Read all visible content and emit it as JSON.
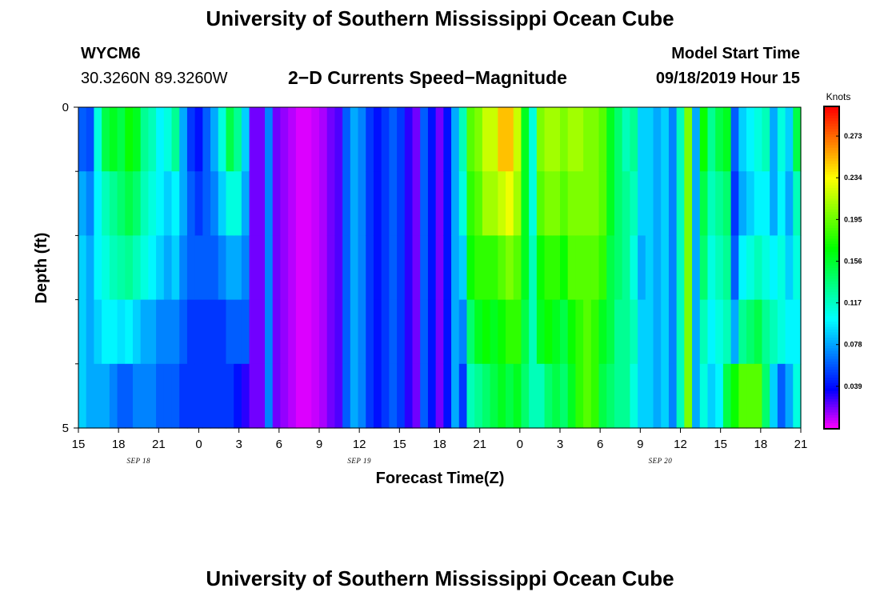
{
  "header": {
    "title_top": "University of Southern Mississippi Ocean Cube",
    "title_bottom": "University of Southern Mississippi Ocean Cube",
    "station_id": "WYCM6",
    "coords": "30.3260N 89.3260W",
    "chart_subtitle": "2−D Currents Speed−Magnitude",
    "model_start_label": "Model Start Time",
    "model_start_value": "09/18/2019 Hour 15"
  },
  "chart_data": {
    "type": "heatmap",
    "title": "2-D Currents Speed-Magnitude",
    "xlabel": "Forecast Time(Z)",
    "ylabel": "Depth (ft)",
    "xlim": [
      0,
      54
    ],
    "ylim": [
      0,
      5
    ],
    "x_ticks": [
      0,
      3,
      6,
      9,
      12,
      15,
      18,
      21,
      24,
      27,
      30,
      33,
      36,
      39,
      42,
      45,
      48,
      51,
      54
    ],
    "x_tick_labels": [
      "15",
      "18",
      "21",
      "0",
      "3",
      "6",
      "9",
      "12",
      "15",
      "18",
      "21",
      "0",
      "3",
      "6",
      "9",
      "12",
      "15",
      "18",
      "21"
    ],
    "y_tick_labels": [
      "0",
      "5"
    ],
    "y_minor_ticks": [
      1,
      2,
      3,
      4
    ],
    "date_labels": [
      {
        "label": "SEP 18",
        "x": 4.5
      },
      {
        "label": "SEP 19",
        "x": 21
      },
      {
        "label": "SEP 20",
        "x": 43.5
      }
    ],
    "colorbar": {
      "unit": "Knots",
      "min": 0.0,
      "max": 0.3,
      "ticks": [
        0.039,
        0.078,
        0.117,
        0.156,
        0.195,
        0.234,
        0.273
      ],
      "tick_labels": [
        "0.039",
        "0.078",
        "0.117",
        "0.156",
        "0.195",
        "0.234",
        "0.273"
      ]
    },
    "columns_per_hour": 2,
    "depth_layers": 5,
    "speed_knots": [
      [
        0.06,
        0.08,
        0.09,
        0.09,
        0.09
      ],
      [
        0.055,
        0.07,
        0.08,
        0.08,
        0.08
      ],
      [
        0.11,
        0.1,
        0.1,
        0.09,
        0.08
      ],
      [
        0.15,
        0.12,
        0.11,
        0.1,
        0.08
      ],
      [
        0.16,
        0.13,
        0.12,
        0.1,
        0.07
      ],
      [
        0.15,
        0.14,
        0.125,
        0.095,
        0.06
      ],
      [
        0.17,
        0.15,
        0.13,
        0.1,
        0.06
      ],
      [
        0.16,
        0.14,
        0.12,
        0.09,
        0.07
      ],
      [
        0.13,
        0.12,
        0.11,
        0.08,
        0.07
      ],
      [
        0.12,
        0.11,
        0.1,
        0.08,
        0.07
      ],
      [
        0.1,
        0.1,
        0.09,
        0.07,
        0.06
      ],
      [
        0.11,
        0.09,
        0.08,
        0.07,
        0.06
      ],
      [
        0.13,
        0.1,
        0.09,
        0.07,
        0.06
      ],
      [
        0.08,
        0.08,
        0.07,
        0.06,
        0.05
      ],
      [
        0.05,
        0.06,
        0.06,
        0.05,
        0.05
      ],
      [
        0.04,
        0.05,
        0.06,
        0.05,
        0.05
      ],
      [
        0.06,
        0.06,
        0.06,
        0.05,
        0.05
      ],
      [
        0.08,
        0.07,
        0.06,
        0.05,
        0.05
      ],
      [
        0.11,
        0.09,
        0.07,
        0.05,
        0.05
      ],
      [
        0.15,
        0.11,
        0.08,
        0.06,
        0.05
      ],
      [
        0.13,
        0.11,
        0.08,
        0.06,
        0.04
      ],
      [
        0.09,
        0.08,
        0.07,
        0.06,
        0.03
      ],
      [
        0.02,
        0.02,
        0.02,
        0.02,
        0.02
      ],
      [
        0.02,
        0.02,
        0.02,
        0.02,
        0.02
      ],
      [
        0.07,
        0.07,
        0.07,
        0.07,
        0.07
      ],
      [
        0.02,
        0.02,
        0.02,
        0.02,
        0.02
      ],
      [
        0.015,
        0.015,
        0.015,
        0.015,
        0.015
      ],
      [
        0.01,
        0.01,
        0.01,
        0.01,
        0.01
      ],
      [
        0.005,
        0.005,
        0.005,
        0.005,
        0.005
      ],
      [
        0.005,
        0.005,
        0.005,
        0.005,
        0.005
      ],
      [
        0.008,
        0.008,
        0.008,
        0.008,
        0.008
      ],
      [
        0.012,
        0.012,
        0.012,
        0.012,
        0.012
      ],
      [
        0.02,
        0.02,
        0.02,
        0.02,
        0.02
      ],
      [
        0.025,
        0.025,
        0.025,
        0.025,
        0.025
      ],
      [
        0.06,
        0.06,
        0.06,
        0.06,
        0.06
      ],
      [
        0.08,
        0.08,
        0.08,
        0.08,
        0.08
      ],
      [
        0.07,
        0.07,
        0.07,
        0.07,
        0.07
      ],
      [
        0.05,
        0.05,
        0.05,
        0.05,
        0.05
      ],
      [
        0.04,
        0.04,
        0.04,
        0.04,
        0.04
      ],
      [
        0.05,
        0.05,
        0.05,
        0.05,
        0.05
      ],
      [
        0.06,
        0.06,
        0.06,
        0.06,
        0.06
      ],
      [
        0.05,
        0.05,
        0.05,
        0.05,
        0.05
      ],
      [
        0.03,
        0.03,
        0.03,
        0.03,
        0.03
      ],
      [
        0.02,
        0.02,
        0.02,
        0.02,
        0.02
      ],
      [
        0.06,
        0.06,
        0.06,
        0.06,
        0.06
      ],
      [
        0.04,
        0.04,
        0.04,
        0.04,
        0.04
      ],
      [
        0.02,
        0.02,
        0.02,
        0.02,
        0.02
      ],
      [
        0.04,
        0.04,
        0.04,
        0.04,
        0.04
      ],
      [
        0.08,
        0.08,
        0.08,
        0.08,
        0.08
      ],
      [
        0.12,
        0.11,
        0.09,
        0.07,
        0.05
      ],
      [
        0.19,
        0.18,
        0.17,
        0.14,
        0.12
      ],
      [
        0.2,
        0.19,
        0.18,
        0.16,
        0.13
      ],
      [
        0.22,
        0.21,
        0.18,
        0.17,
        0.14
      ],
      [
        0.22,
        0.21,
        0.18,
        0.16,
        0.15
      ],
      [
        0.25,
        0.22,
        0.19,
        0.17,
        0.16
      ],
      [
        0.25,
        0.23,
        0.2,
        0.18,
        0.15
      ],
      [
        0.22,
        0.21,
        0.19,
        0.18,
        0.16
      ],
      [
        0.16,
        0.16,
        0.16,
        0.15,
        0.14
      ],
      [
        0.11,
        0.11,
        0.12,
        0.12,
        0.12
      ],
      [
        0.2,
        0.19,
        0.17,
        0.16,
        0.12
      ],
      [
        0.21,
        0.2,
        0.18,
        0.17,
        0.14
      ],
      [
        0.21,
        0.2,
        0.18,
        0.16,
        0.15
      ],
      [
        0.2,
        0.19,
        0.17,
        0.15,
        0.14
      ],
      [
        0.21,
        0.2,
        0.19,
        0.17,
        0.16
      ],
      [
        0.21,
        0.2,
        0.19,
        0.18,
        0.18
      ],
      [
        0.2,
        0.2,
        0.19,
        0.19,
        0.19
      ],
      [
        0.2,
        0.2,
        0.19,
        0.18,
        0.18
      ],
      [
        0.19,
        0.19,
        0.18,
        0.16,
        0.15
      ],
      [
        0.16,
        0.16,
        0.15,
        0.15,
        0.14
      ],
      [
        0.14,
        0.14,
        0.14,
        0.13,
        0.13
      ],
      [
        0.12,
        0.13,
        0.13,
        0.13,
        0.13
      ],
      [
        0.13,
        0.12,
        0.11,
        0.12,
        0.11
      ],
      [
        0.09,
        0.09,
        0.08,
        0.09,
        0.09
      ],
      [
        0.09,
        0.09,
        0.09,
        0.09,
        0.09
      ],
      [
        0.08,
        0.08,
        0.08,
        0.08,
        0.08
      ],
      [
        0.09,
        0.09,
        0.09,
        0.09,
        0.09
      ],
      [
        0.07,
        0.07,
        0.07,
        0.07,
        0.07
      ],
      [
        0.12,
        0.12,
        0.12,
        0.12,
        0.12
      ],
      [
        0.2,
        0.2,
        0.2,
        0.2,
        0.2
      ],
      [
        0.08,
        0.08,
        0.08,
        0.08,
        0.08
      ],
      [
        0.17,
        0.15,
        0.14,
        0.12,
        0.11
      ],
      [
        0.13,
        0.12,
        0.11,
        0.1,
        0.09
      ],
      [
        0.15,
        0.13,
        0.12,
        0.11,
        0.1
      ],
      [
        0.16,
        0.14,
        0.13,
        0.12,
        0.15
      ],
      [
        0.06,
        0.05,
        0.06,
        0.08,
        0.17
      ],
      [
        0.09,
        0.08,
        0.1,
        0.13,
        0.19
      ],
      [
        0.1,
        0.09,
        0.11,
        0.14,
        0.19
      ],
      [
        0.11,
        0.1,
        0.12,
        0.15,
        0.19
      ],
      [
        0.12,
        0.1,
        0.11,
        0.13,
        0.14
      ],
      [
        0.08,
        0.08,
        0.1,
        0.12,
        0.09
      ],
      [
        0.11,
        0.1,
        0.11,
        0.11,
        0.06
      ],
      [
        0.09,
        0.08,
        0.09,
        0.1,
        0.08
      ],
      [
        0.15,
        0.12,
        0.11,
        0.1,
        0.11
      ]
    ]
  }
}
